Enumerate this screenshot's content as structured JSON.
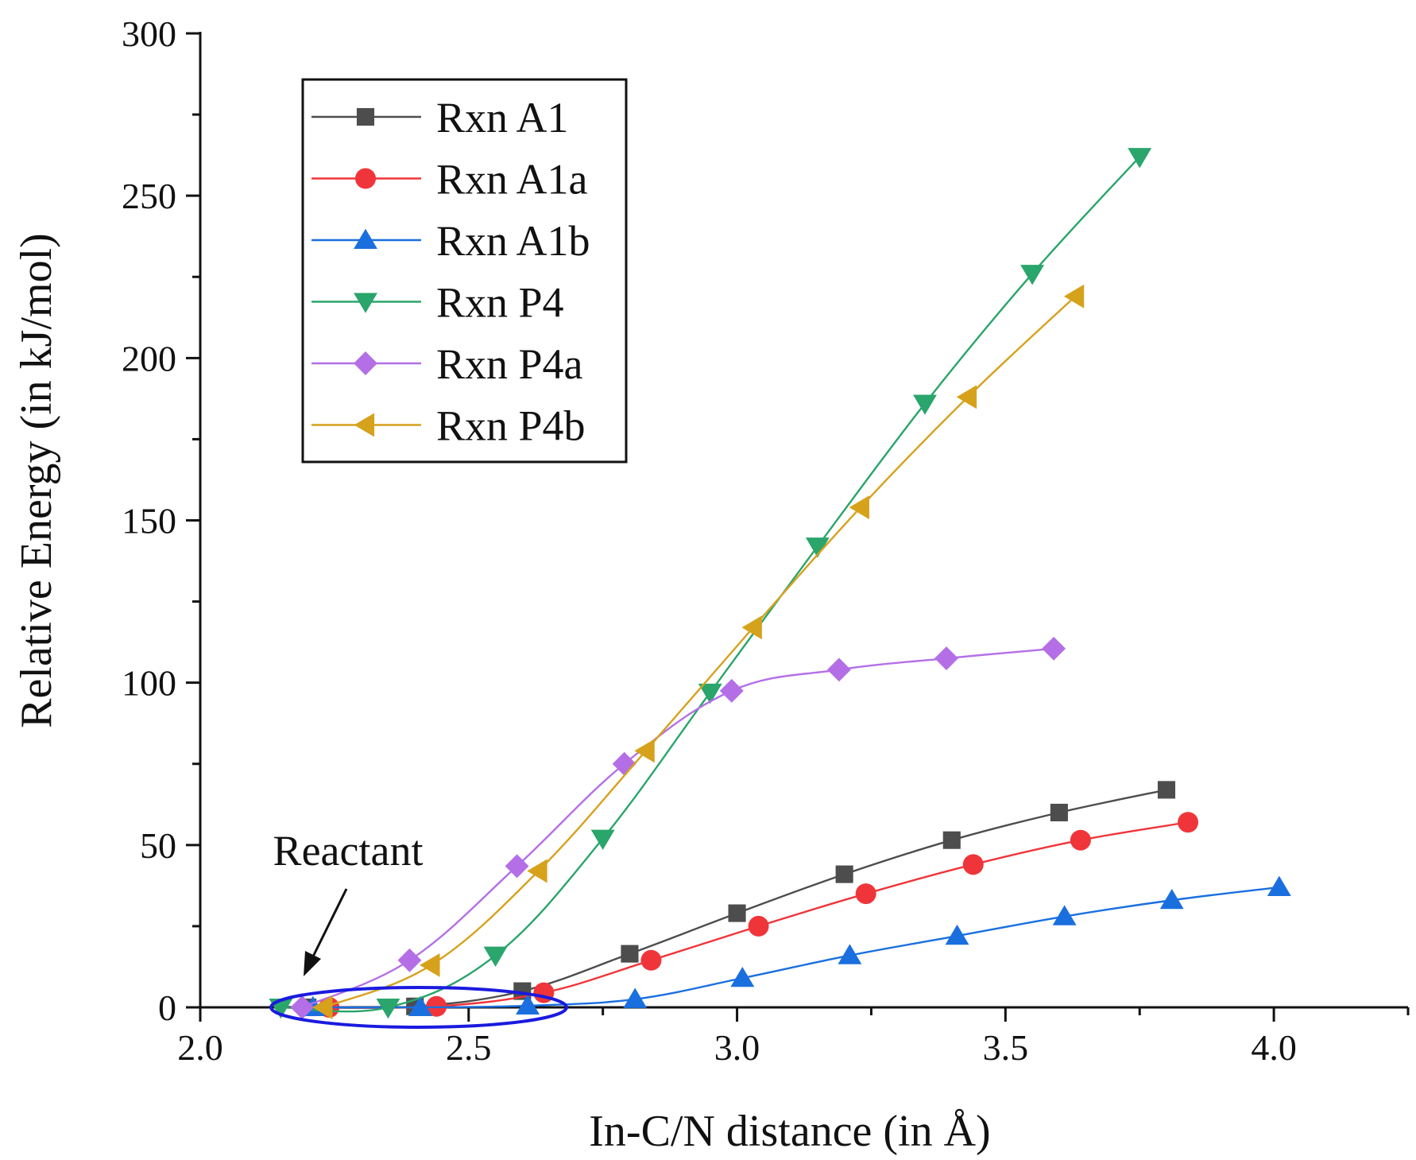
{
  "chart_data": {
    "type": "line",
    "title": "",
    "xlabel": "In-C/N distance (in Å)",
    "ylabel": "Relative Energy (in kJ/mol)",
    "xlim": [
      2.0,
      4.25
    ],
    "ylim": [
      0,
      300
    ],
    "x_ticks": [
      "2.0",
      "2.5",
      "3.0",
      "3.5",
      "4.0"
    ],
    "y_ticks": [
      "0",
      "50",
      "100",
      "150",
      "200",
      "250",
      "300"
    ],
    "grid": false,
    "legend_position": "top-left",
    "series": [
      {
        "name": "Rxn A1",
        "color": "#4d4d4d",
        "marker": "square",
        "points": [
          [
            2.2,
            0
          ],
          [
            2.4,
            0.3
          ],
          [
            2.6,
            5
          ],
          [
            2.8,
            16.5
          ],
          [
            3.0,
            29
          ],
          [
            3.2,
            41
          ],
          [
            3.4,
            51.5
          ],
          [
            3.6,
            60
          ],
          [
            3.8,
            67
          ]
        ]
      },
      {
        "name": "Rxn A1a",
        "color": "#f0353a",
        "marker": "circle",
        "points": [
          [
            2.24,
            0
          ],
          [
            2.44,
            0.3
          ],
          [
            2.64,
            4.5
          ],
          [
            2.84,
            14.5
          ],
          [
            3.04,
            25
          ],
          [
            3.24,
            35
          ],
          [
            3.44,
            44
          ],
          [
            3.64,
            51.5
          ],
          [
            3.84,
            57
          ]
        ]
      },
      {
        "name": "Rxn A1b",
        "color": "#1a6fdf",
        "marker": "triangle-up",
        "points": [
          [
            2.21,
            0
          ],
          [
            2.41,
            0
          ],
          [
            2.61,
            0.5
          ],
          [
            2.81,
            2.5
          ],
          [
            3.01,
            9
          ],
          [
            3.21,
            16
          ],
          [
            3.41,
            22
          ],
          [
            3.61,
            28
          ],
          [
            3.81,
            33
          ],
          [
            4.01,
            37
          ]
        ]
      },
      {
        "name": "Rxn P4",
        "color": "#2aa56b",
        "marker": "triangle-down",
        "points": [
          [
            2.15,
            0
          ],
          [
            2.35,
            0
          ],
          [
            2.55,
            16
          ],
          [
            2.75,
            52
          ],
          [
            2.95,
            97
          ],
          [
            3.15,
            142
          ],
          [
            3.35,
            186
          ],
          [
            3.55,
            226
          ],
          [
            3.75,
            262
          ]
        ]
      },
      {
        "name": "Rxn P4a",
        "color": "#b46fe6",
        "marker": "diamond",
        "points": [
          [
            2.19,
            0
          ],
          [
            2.39,
            14.5
          ],
          [
            2.59,
            43.5
          ],
          [
            2.79,
            75
          ],
          [
            2.99,
            97.5
          ],
          [
            3.19,
            104
          ],
          [
            3.39,
            107.5
          ],
          [
            3.59,
            110.5
          ]
        ]
      },
      {
        "name": "Rxn P4b",
        "color": "#d6a21c",
        "marker": "triangle-left",
        "points": [
          [
            2.23,
            0
          ],
          [
            2.43,
            13
          ],
          [
            2.63,
            42
          ],
          [
            2.83,
            79
          ],
          [
            3.03,
            117
          ],
          [
            3.23,
            154
          ],
          [
            3.43,
            188
          ],
          [
            3.63,
            219
          ]
        ]
      }
    ],
    "annotations": [
      {
        "text": "Reactant"
      }
    ]
  }
}
